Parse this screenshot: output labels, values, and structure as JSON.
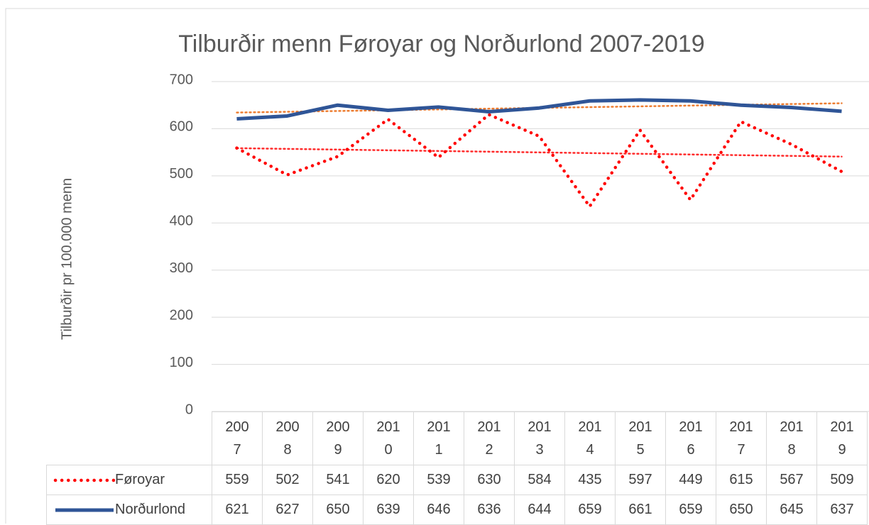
{
  "chart_data": {
    "type": "line",
    "title": "Tilburðir menn Føroyar og Norðurlond 2007-2019",
    "y_label": "Tilburðir pr 100.000 menn",
    "categories": [
      "2007",
      "2008",
      "2009",
      "2010",
      "2011",
      "2012",
      "2013",
      "2014",
      "2015",
      "2016",
      "2017",
      "2018",
      "2019"
    ],
    "series": [
      {
        "name": "Føroyar",
        "color": "#ff0000",
        "dash": "dotted",
        "trendline": true,
        "trendline_color": "#ff2a2a",
        "values": [
          559,
          502,
          541,
          620,
          539,
          630,
          584,
          435,
          597,
          449,
          615,
          567,
          509
        ]
      },
      {
        "name": "Norðurlond",
        "color": "#2f5597",
        "dash": "solid",
        "trendline": true,
        "trendline_color": "#ed7d31",
        "values": [
          621,
          627,
          650,
          639,
          646,
          636,
          644,
          659,
          661,
          659,
          650,
          645,
          637
        ]
      }
    ],
    "ylim": [
      0,
      700
    ],
    "yticks": [
      0,
      100,
      200,
      300,
      400,
      500,
      600,
      700
    ],
    "grid": true,
    "data_table": true
  }
}
